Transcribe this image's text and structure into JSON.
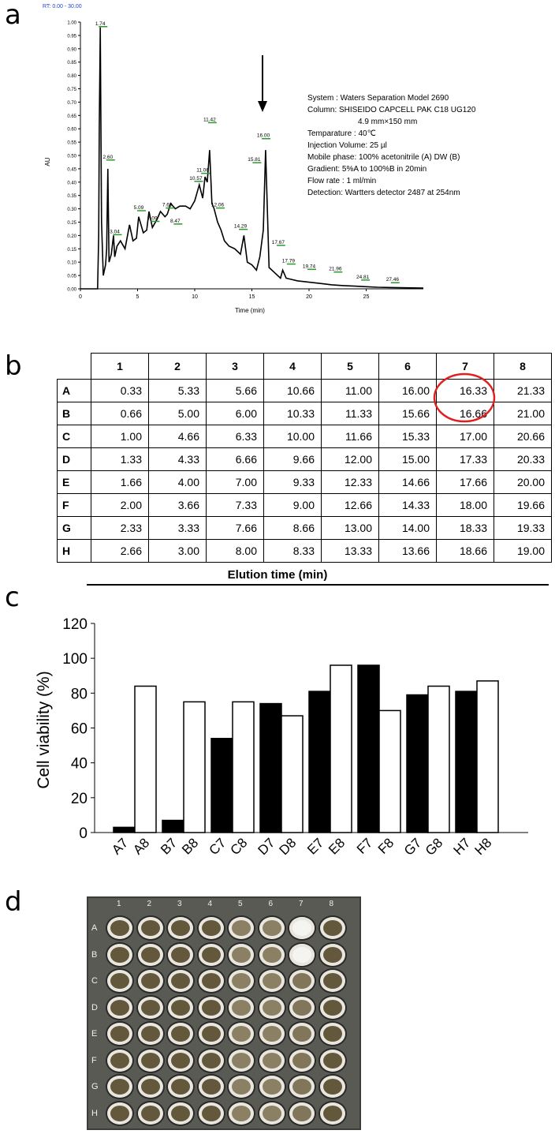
{
  "panels": {
    "a": "a",
    "b": "b",
    "c": "c",
    "d": "d"
  },
  "chart_data": [
    {
      "type": "line",
      "header_text": "RT: 0.00 - 30.00",
      "xlabel": "Time (min)",
      "ylabel": "AU",
      "xlim": [
        0,
        30
      ],
      "ylim": [
        0,
        1.0
      ],
      "x_ticks": [
        "0",
        "5",
        "10",
        "15",
        "20",
        "25"
      ],
      "y_ticks": [
        "0.00",
        "0.05",
        "0.10",
        "0.15",
        "0.20",
        "0.25",
        "0.30",
        "0.35",
        "0.40",
        "0.45",
        "0.50",
        "0.55",
        "0.60",
        "0.65",
        "0.70",
        "0.75",
        "0.80",
        "0.85",
        "0.90",
        "0.95",
        "1.00"
      ],
      "x": [
        0,
        1.5,
        1.6,
        1.65,
        1.74,
        1.85,
        2.0,
        2.2,
        2.3,
        2.4,
        2.5,
        2.7,
        2.9,
        3.0,
        3.2,
        3.5,
        3.9,
        4.3,
        4.6,
        4.9,
        5.1,
        5.5,
        5.8,
        6.0,
        6.3,
        6.7,
        7.0,
        7.4,
        7.6,
        7.9,
        8.3,
        8.7,
        9.2,
        9.6,
        10.0,
        10.2,
        10.4,
        10.7,
        10.9,
        11.1,
        11.3,
        11.5,
        11.7,
        12.0,
        12.3,
        12.6,
        13.0,
        13.5,
        14.0,
        14.3,
        14.6,
        15.0,
        15.4,
        15.7,
        16.0,
        16.2,
        16.5,
        17.0,
        17.5,
        17.7,
        18.0,
        19.0,
        20.0,
        21.0,
        22.0,
        23.0,
        24.0,
        25.0,
        26.0,
        27.0,
        28.0,
        30.0
      ],
      "y": [
        0.0,
        0.0,
        0.2,
        0.6,
        0.98,
        0.25,
        0.05,
        0.09,
        0.15,
        0.45,
        0.1,
        0.13,
        0.2,
        0.12,
        0.16,
        0.18,
        0.15,
        0.24,
        0.18,
        0.19,
        0.27,
        0.21,
        0.22,
        0.29,
        0.23,
        0.26,
        0.29,
        0.27,
        0.28,
        0.32,
        0.3,
        0.31,
        0.31,
        0.3,
        0.33,
        0.36,
        0.39,
        0.34,
        0.42,
        0.4,
        0.52,
        0.32,
        0.3,
        0.25,
        0.22,
        0.18,
        0.16,
        0.15,
        0.13,
        0.2,
        0.1,
        0.09,
        0.07,
        0.12,
        0.22,
        0.52,
        0.08,
        0.06,
        0.04,
        0.07,
        0.04,
        0.03,
        0.025,
        0.02,
        0.015,
        0.012,
        0.01,
        0.008,
        0.006,
        0.005,
        0.004,
        0.003
      ],
      "peak_labels": [
        {
          "t": "1.74",
          "x": 1.74,
          "y": 0.98
        },
        {
          "t": "2.60",
          "x": 2.4,
          "y": 0.48
        },
        {
          "t": "3.04",
          "x": 3.0,
          "y": 0.2
        },
        {
          "t": "5.09",
          "x": 5.1,
          "y": 0.29
        },
        {
          "t": "7.09",
          "x": 6.3,
          "y": 0.25
        },
        {
          "t": "7.69",
          "x": 7.6,
          "y": 0.3
        },
        {
          "t": "8.47",
          "x": 8.3,
          "y": 0.24
        },
        {
          "t": "10.57",
          "x": 10.1,
          "y": 0.4
        },
        {
          "t": "11.06",
          "x": 10.7,
          "y": 0.43
        },
        {
          "t": "11.42",
          "x": 11.3,
          "y": 0.62
        },
        {
          "t": "12.06",
          "x": 12.0,
          "y": 0.3
        },
        {
          "t": "14.29",
          "x": 14.0,
          "y": 0.22
        },
        {
          "t": "15.81",
          "x": 15.2,
          "y": 0.47
        },
        {
          "t": "16.00",
          "x": 16.0,
          "y": 0.56
        },
        {
          "t": "17.67",
          "x": 17.3,
          "y": 0.16
        },
        {
          "t": "17.79",
          "x": 18.2,
          "y": 0.09
        },
        {
          "t": "19.74",
          "x": 20.0,
          "y": 0.07
        },
        {
          "t": "21.96",
          "x": 22.3,
          "y": 0.06
        },
        {
          "t": "24.81",
          "x": 24.7,
          "y": 0.03
        },
        {
          "t": "27.46",
          "x": 27.3,
          "y": 0.02
        }
      ],
      "arrow_at_x": 16.0,
      "info_lines": [
        "System : Waters Separation Model 2690",
        "Column: SHISEIDO CAPCELL PAK C18 UG120",
        "4.9 mm×150 mm",
        "Temparature : 40℃",
        "Injection Volume: 25 µl",
        "Mobile phase:   100% acetonitrile (A)   DW (B)",
        "Gradient:   5%A to 100%B in 20min",
        "Flow rate : 1 ml/min",
        "Detection: Wartters detector 2487 at 254nm"
      ]
    },
    {
      "type": "table",
      "columns": [
        "1",
        "2",
        "3",
        "4",
        "5",
        "6",
        "7",
        "8"
      ],
      "rows": [
        {
          "label": "A",
          "values": [
            "0.33",
            "5.33",
            "5.66",
            "10.66",
            "11.00",
            "16.00",
            "16.33",
            "21.33"
          ]
        },
        {
          "label": "B",
          "values": [
            "0.66",
            "5.00",
            "6.00",
            "10.33",
            "11.33",
            "15.66",
            "16.66",
            "21.00"
          ]
        },
        {
          "label": "C",
          "values": [
            "1.00",
            "4.66",
            "6.33",
            "10.00",
            "11.66",
            "15.33",
            "17.00",
            "20.66"
          ]
        },
        {
          "label": "D",
          "values": [
            "1.33",
            "4.33",
            "6.66",
            "9.66",
            "12.00",
            "15.00",
            "17.33",
            "20.33"
          ]
        },
        {
          "label": "E",
          "values": [
            "1.66",
            "4.00",
            "7.00",
            "9.33",
            "12.33",
            "14.66",
            "17.66",
            "20.00"
          ]
        },
        {
          "label": "F",
          "values": [
            "2.00",
            "3.66",
            "7.33",
            "9.00",
            "12.66",
            "14.33",
            "18.00",
            "19.66"
          ]
        },
        {
          "label": "G",
          "values": [
            "2.33",
            "3.33",
            "7.66",
            "8.66",
            "13.00",
            "14.00",
            "18.33",
            "19.33"
          ]
        },
        {
          "label": "H",
          "values": [
            "2.66",
            "3.00",
            "8.00",
            "8.33",
            "13.33",
            "13.66",
            "18.66",
            "19.00"
          ]
        }
      ],
      "highlighted_cells": [
        "A7",
        "B7"
      ],
      "caption": "Elution time (min)"
    },
    {
      "type": "bar",
      "ylabel": "Cell viability (%)",
      "ylim": [
        0,
        120
      ],
      "y_ticks": [
        "0",
        "20",
        "40",
        "60",
        "80",
        "100",
        "120"
      ],
      "categories": [
        "A7",
        "A8",
        "B7",
        "B8",
        "C7",
        "C8",
        "D7",
        "D8",
        "E7",
        "E8",
        "F7",
        "F8",
        "G7",
        "G8",
        "H7",
        "H8"
      ],
      "values": [
        3,
        84,
        7,
        75,
        54,
        75,
        74,
        67,
        81,
        96,
        96,
        70,
        79,
        84,
        81,
        87
      ],
      "fills": [
        "black",
        "white",
        "black",
        "white",
        "black",
        "white",
        "black",
        "white",
        "black",
        "white",
        "black",
        "white",
        "black",
        "white",
        "black",
        "white"
      ]
    }
  ],
  "plate": {
    "columns": [
      "1",
      "2",
      "3",
      "4",
      "5",
      "6",
      "7",
      "8"
    ],
    "rows": [
      "A",
      "B",
      "C",
      "D",
      "E",
      "F",
      "G",
      "H"
    ],
    "clear_wells": [
      "A7",
      "B7"
    ]
  },
  "colors": {
    "peak_label": "#2a9a2a",
    "highlight": "#e02020",
    "header_blue": "#2244cc"
  }
}
